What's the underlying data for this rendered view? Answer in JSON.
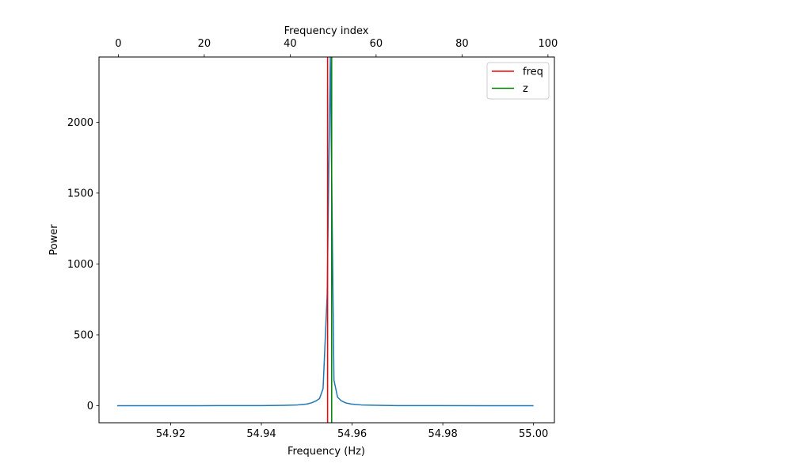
{
  "chart_data": {
    "type": "line",
    "xlabel": "Frequency (Hz)",
    "ylabel": "Power",
    "top_xlabel": "Frequency index",
    "xlim": [
      54.9042,
      55.0046
    ],
    "ylim": [
      -120,
      2460
    ],
    "top_xlim": [
      -4.5,
      101.5
    ],
    "x_ticks": [
      54.92,
      54.94,
      54.96,
      54.98,
      55.0
    ],
    "x_tick_labels": [
      "54.92",
      "54.94",
      "54.96",
      "54.98",
      "55.00"
    ],
    "y_ticks": [
      0,
      500,
      1000,
      1500,
      2000
    ],
    "y_tick_labels": [
      "0",
      "500",
      "1000",
      "1500",
      "2000"
    ],
    "top_x_ticks": [
      0,
      20,
      40,
      60,
      80,
      100
    ],
    "top_x_tick_labels": [
      "0",
      "20",
      "40",
      "60",
      "80",
      "100"
    ],
    "grid": false,
    "legend_position": "top-right",
    "series": [
      {
        "color": "#1f77b4",
        "x": [
          54.9082,
          54.92,
          54.93,
          54.94,
          54.945,
          54.948,
          54.95,
          54.951,
          54.952,
          54.9528,
          54.9536,
          54.9545,
          54.9552,
          54.956,
          54.9568,
          54.9576,
          54.9586,
          54.9598,
          54.962,
          54.966,
          54.97,
          54.98,
          54.99,
          55.0
        ],
        "y": [
          0,
          0,
          0.5,
          1,
          3,
          6,
          12,
          20,
          33,
          50,
          120,
          780,
          2460,
          180,
          60,
          35,
          20,
          12,
          6,
          3,
          1,
          0.5,
          0,
          0
        ]
      }
    ],
    "vlines": [
      {
        "name": "freq",
        "x": 54.9546,
        "color": "#ff0000"
      },
      {
        "name": "z",
        "x": 54.9555,
        "color": "#008000"
      }
    ]
  }
}
